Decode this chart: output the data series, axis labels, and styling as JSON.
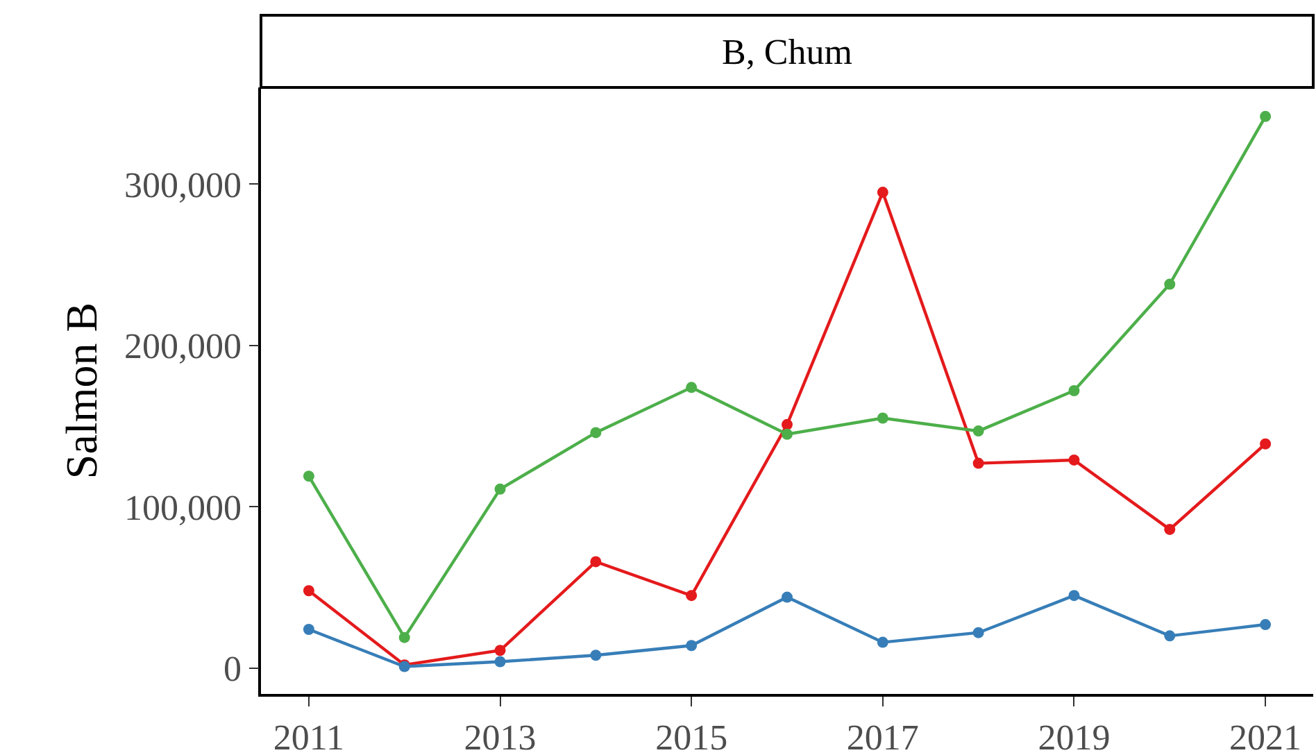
{
  "chart_data": {
    "type": "line",
    "title": "B, Chum",
    "ylabel": "Salmon B",
    "x": [
      2011,
      2012,
      2013,
      2014,
      2015,
      2016,
      2017,
      2018,
      2019,
      2020,
      2021
    ],
    "series": [
      {
        "color": "#e41a1c",
        "values": [
          48000,
          2000,
          11000,
          66000,
          45000,
          151000,
          295000,
          127000,
          129000,
          86000,
          139000
        ]
      },
      {
        "color": "#377eb8",
        "values": [
          24000,
          1000,
          4000,
          8000,
          14000,
          44000,
          16000,
          22000,
          45000,
          20000,
          27000
        ]
      },
      {
        "color": "#4daf4a",
        "values": [
          119000,
          19000,
          111000,
          146000,
          174000,
          145000,
          155000,
          147000,
          172000,
          238000,
          342000
        ]
      }
    ],
    "xlim": [
      2010.5,
      2021.5
    ],
    "xticks": [
      2011,
      2013,
      2015,
      2017,
      2019,
      2021
    ],
    "ylim": [
      -16000,
      360000
    ],
    "yticks": [
      {
        "value": 0,
        "label": "0"
      },
      {
        "value": 100000,
        "label": "100,000"
      },
      {
        "value": 200000,
        "label": "200,000"
      },
      {
        "value": 300000,
        "label": "300,000"
      }
    ],
    "marker": "circle",
    "line_style": "solid"
  }
}
